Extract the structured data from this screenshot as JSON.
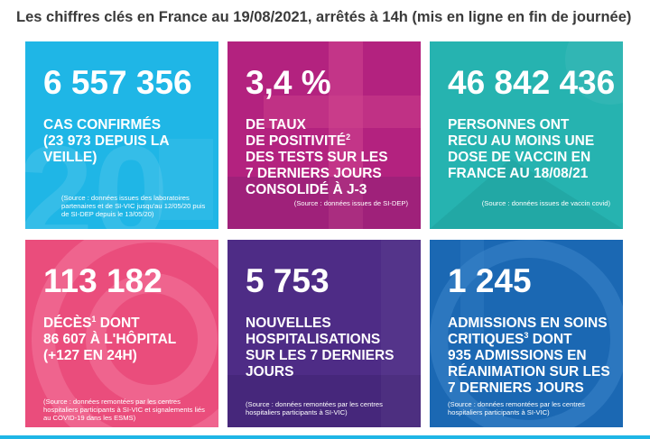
{
  "header": {
    "title": "Les chiffres clés en France au 19/08/2021, arrêtés à 14h (mis en ligne en fin de journée)"
  },
  "colors": {
    "cyan": "#1fb6e6",
    "magenta": "#b3227f",
    "teal": "#26b3b0",
    "pink": "#ea4d7c",
    "purple": "#4e2c86",
    "blue": "#1b68b3"
  },
  "tiles": [
    {
      "number": "6 557 356",
      "label_lines": [
        "CAS CONFIRMÉS",
        "(23 973 DEPUIS LA",
        "VEILLE)"
      ],
      "source": "(Source : données issues des laboratoires partenaires et de SI-VIC jusqu'au 12/05/20 puis de SI-DEP depuis le 13/05/20)"
    },
    {
      "number": "3,4 %",
      "label_lines": [
        "DE TAUX",
        "DE POSITIVITÉ",
        "DES TESTS SUR LES",
        "7 DERNIERS JOURS",
        "CONSOLIDÉ À J-3"
      ],
      "label_sup": "2",
      "source": "(Source : données issues de SI-DEP)"
    },
    {
      "number": "46 842 436",
      "label_lines": [
        "PERSONNES ONT",
        "RECU AU MOINS UNE",
        "DOSE DE VACCIN EN",
        "FRANCE AU 18/08/21"
      ],
      "source": "(Source : données issues de vaccin covid)"
    },
    {
      "number": "113 182",
      "label_lines": [
        "DÉCÈS",
        " DONT",
        "86 607 À L'HÔPITAL",
        "(+127 EN 24H)"
      ],
      "label_sup": "1",
      "source": "(Source : données remontées par les centres hospitaliers participants à SI-VIC et signalements liés au COVID-19 dans les ESMS)"
    },
    {
      "number": "5 753",
      "label_lines": [
        "NOUVELLES",
        "HOSPITALISATIONS",
        "SUR LES 7 DERNIERS",
        "JOURS"
      ],
      "source": "(Source : données remontées par les centres hospitaliers participants à SI-VIC)"
    },
    {
      "number": "1 245",
      "label_lines": [
        "ADMISSIONS EN SOINS",
        "CRITIQUES",
        " DONT",
        "935 ADMISSIONS EN",
        "RÉANIMATION SUR LES",
        "7 DERNIERS JOURS"
      ],
      "label_sup": "3",
      "source": "(Source : données remontées par les centres hospitaliers participants à SI-VIC)"
    }
  ]
}
